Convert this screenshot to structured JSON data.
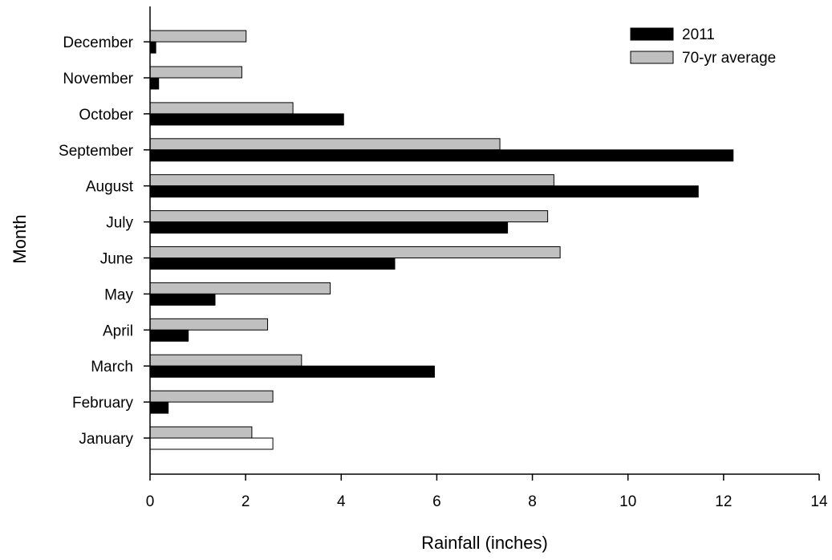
{
  "chart_data": {
    "type": "bar",
    "orientation": "horizontal",
    "title": "",
    "xlabel": "Rainfall (inches)",
    "ylabel": "Month",
    "xlim": [
      0,
      14
    ],
    "xticks": [
      0,
      2,
      4,
      6,
      8,
      10,
      12,
      14
    ],
    "xtick_labels": [
      "0",
      "2",
      "4",
      "6",
      "8",
      "10",
      "12",
      "14"
    ],
    "categories": [
      "January",
      "February",
      "March",
      "April",
      "May",
      "June",
      "July",
      "August",
      "September",
      "October",
      "November",
      "December"
    ],
    "series": [
      {
        "name": "2011",
        "color": "#000000",
        "values": [
          2.57,
          0.38,
          5.95,
          0.8,
          1.36,
          5.12,
          7.48,
          11.47,
          12.2,
          4.05,
          0.18,
          0.12
        ]
      },
      {
        "name": "70-yr average",
        "color": "#c0c0c0",
        "values": [
          2.13,
          2.57,
          3.17,
          2.46,
          3.77,
          8.58,
          8.32,
          8.45,
          7.32,
          2.99,
          1.92,
          2.01
        ]
      }
    ],
    "bar_color_exceptions": [
      {
        "series": "2011",
        "category": "January",
        "color": "#ffffff"
      }
    ],
    "legend": {
      "position": "top-right",
      "entries": [
        "2011",
        "70-yr average"
      ]
    },
    "grid": false
  }
}
